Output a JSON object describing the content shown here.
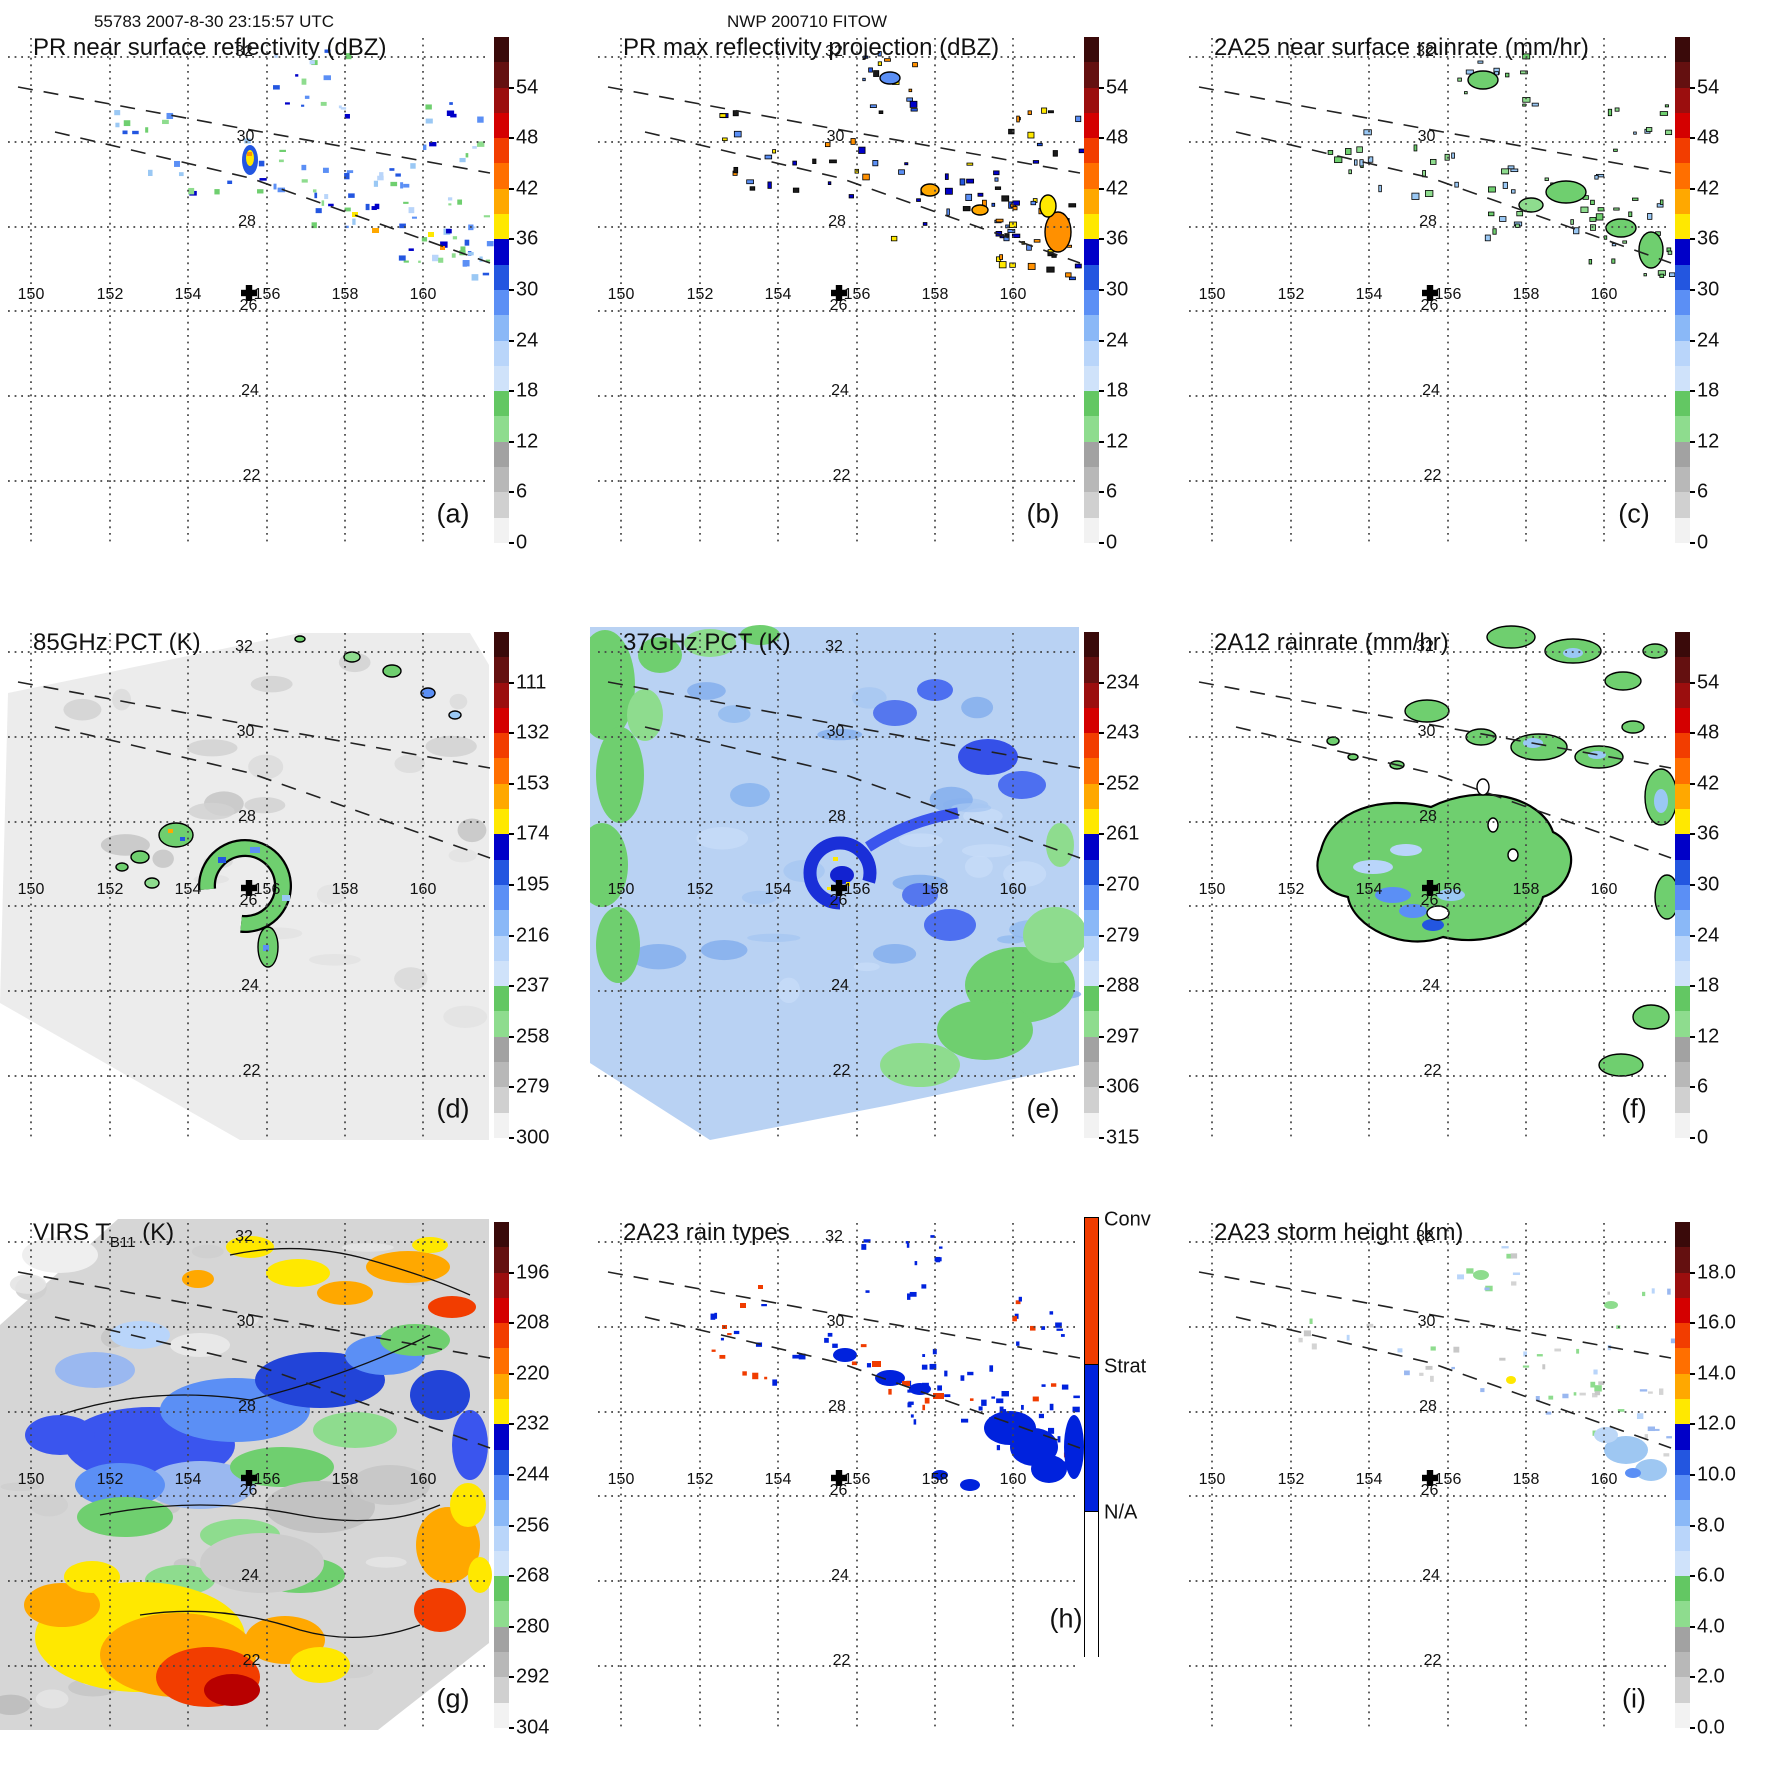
{
  "header": {
    "left_title": "55783 2007-8-30 23:15:57 UTC",
    "center_title": "NWP 200710 FITOW"
  },
  "chart_data": {
    "type": "heatmap",
    "layout": "3x3 panel satellite / radar overpass maps, each with lon-lat dotted grid, dashed PR swath edge lines, storm-center plus marker and vertical colorbar",
    "grid": {
      "lon_ticks": [
        "150",
        "152",
        "154",
        "156",
        "158",
        "160"
      ],
      "lat_ticks": [
        "32",
        "30",
        "28",
        "26",
        "24",
        "22"
      ]
    },
    "storm_center_marker": {
      "symbol": "plus",
      "approx_lon": 155.6,
      "approx_lat": 26.4
    },
    "colorbar_ramp_colors_top_to_bottom": [
      "#3a0a0a",
      "#641010",
      "#9b0e0e",
      "#d40000",
      "#f23d00",
      "#ff6f00",
      "#ffa800",
      "#ffe800",
      "#0000c8",
      "#2356e0",
      "#5b8ff5",
      "#8ab8f7",
      "#b9d5fa",
      "#cfe2fa",
      "#63c763",
      "#8edc8e",
      "#a2a2a2",
      "#b8b8b8",
      "#d0d0d0",
      "#f2f2f2"
    ],
    "rain_type_colorbar": {
      "labels": [
        "Conv",
        "Strat",
        "N/A"
      ],
      "colors": [
        "#f03c00",
        "#0022dd",
        "#ffffff"
      ]
    },
    "panels": [
      {
        "panel_label": "(a)",
        "title": "PR near surface reflectivity (dBZ)",
        "colorbar_ticks": [
          "54",
          "48",
          "42",
          "36",
          "30",
          "24",
          "18",
          "12",
          "6",
          "0"
        ]
      },
      {
        "panel_label": "(b)",
        "title": "PR max reflectivity projection (dBZ)",
        "colorbar_ticks": [
          "54",
          "48",
          "42",
          "36",
          "30",
          "24",
          "18",
          "12",
          "6",
          "0"
        ]
      },
      {
        "panel_label": "(c)",
        "title": "2A25 near surface rainrate (mm/hr)",
        "colorbar_ticks": [
          "54",
          "48",
          "42",
          "36",
          "30",
          "24",
          "18",
          "12",
          "6",
          "0"
        ]
      },
      {
        "panel_label": "(d)",
        "title": "85GHz PCT (K)",
        "colorbar_ticks": [
          "111",
          "132",
          "153",
          "174",
          "195",
          "216",
          "237",
          "258",
          "279",
          "300"
        ]
      },
      {
        "panel_label": "(e)",
        "title": "37GHz PCT (K)",
        "colorbar_ticks": [
          "234",
          "243",
          "252",
          "261",
          "270",
          "279",
          "288",
          "297",
          "306",
          "315"
        ]
      },
      {
        "panel_label": "(f)",
        "title": "2A12 rainrate (mm/hr)",
        "colorbar_ticks": [
          "54",
          "48",
          "42",
          "36",
          "30",
          "24",
          "18",
          "12",
          "6",
          "0"
        ]
      },
      {
        "panel_label": "(g)",
        "title_base": "VIRS T",
        "title_sub": "B11",
        "title_unit": " (K)",
        "colorbar_ticks": [
          "196",
          "208",
          "220",
          "232",
          "244",
          "256",
          "268",
          "280",
          "292",
          "304"
        ]
      },
      {
        "panel_label": "(h)",
        "title": "2A23 rain types",
        "colorbar_type": "raintype"
      },
      {
        "panel_label": "(i)",
        "title": "2A23 storm height (km)",
        "colorbar_ticks": [
          "18.0",
          "16.0",
          "14.0",
          "12.0",
          "10.0",
          "8.0",
          "6.0",
          "4.0",
          "2.0",
          "0.0"
        ]
      }
    ]
  }
}
